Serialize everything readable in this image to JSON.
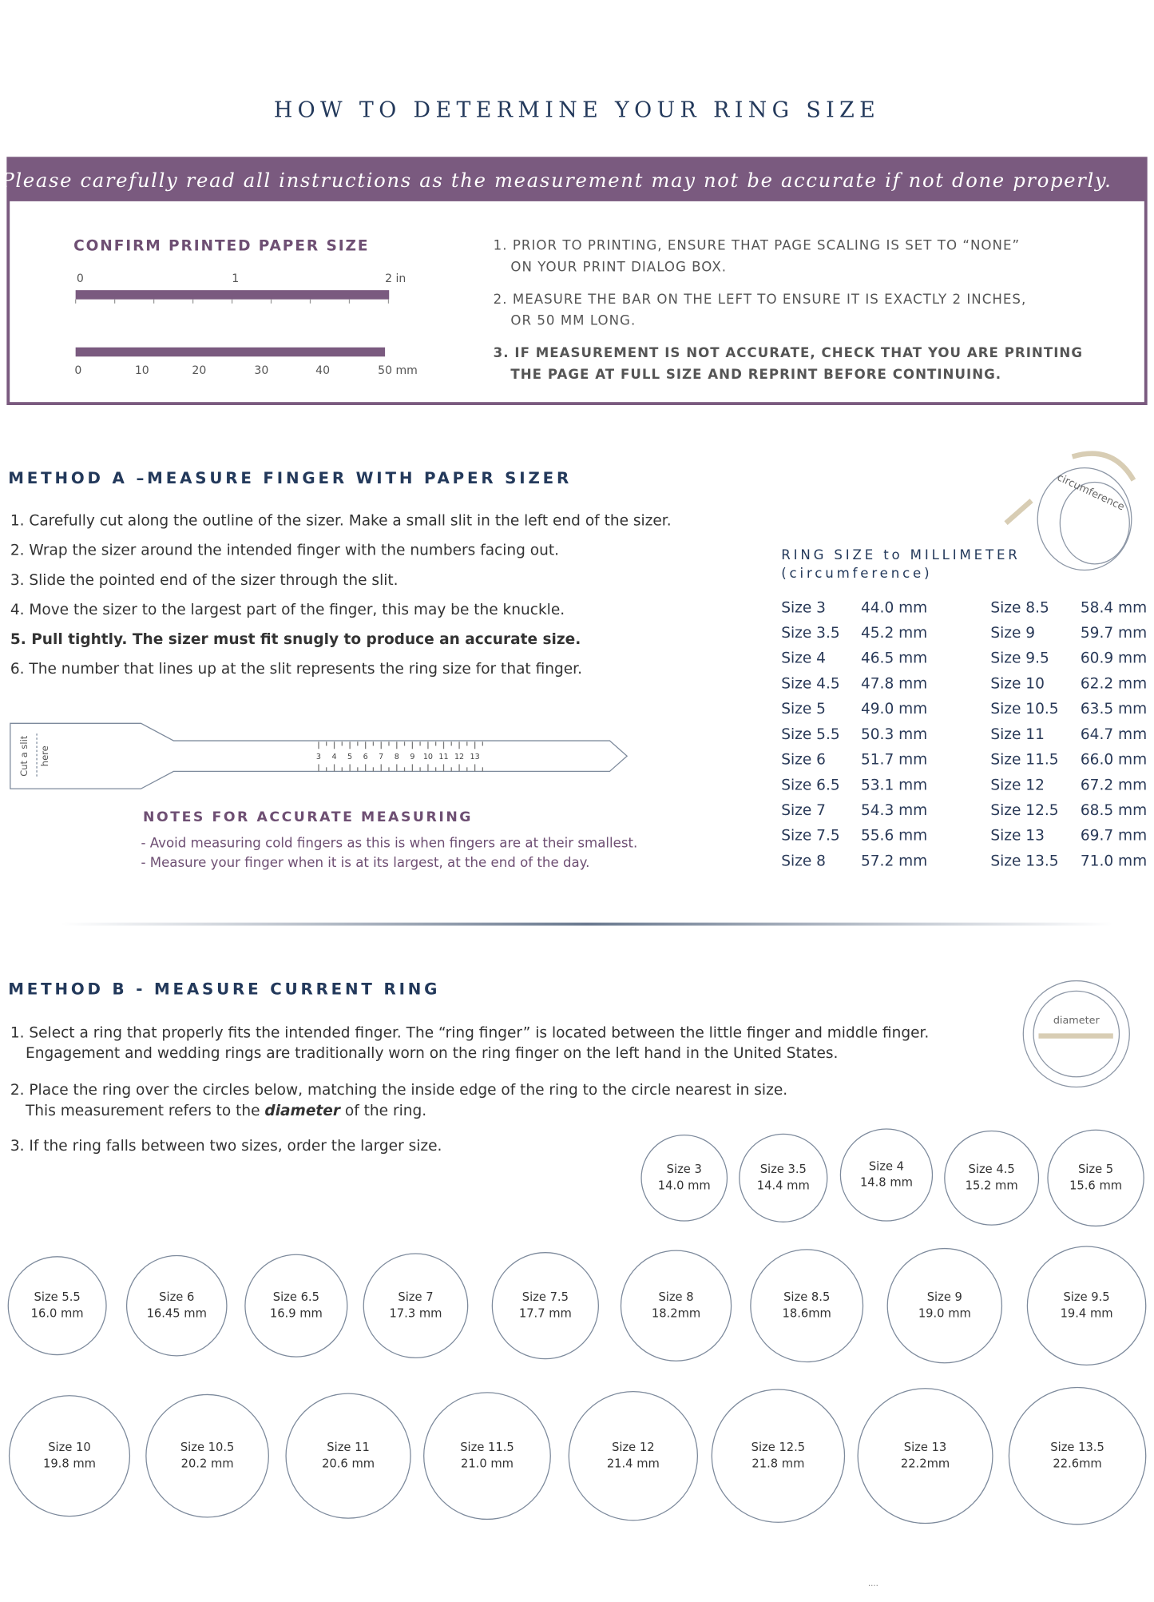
{
  "header": {
    "title": "HOW TO DETERMINE YOUR RING SIZE"
  },
  "banner": "Please carefully read all instructions as the measurement may not be accurate if not done properly.",
  "confirm": {
    "heading": "CONFIRM PRINTED PAPER SIZE",
    "inch_ticks": [
      "0",
      "1",
      "2 in"
    ],
    "mm_ticks": [
      "0",
      "10",
      "20",
      "30",
      "40",
      "50 mm"
    ],
    "steps": [
      [
        "1. PRIOR TO PRINTING, ENSURE THAT PAGE SCALING IS SET TO “NONE”",
        "ON YOUR PRINT DIALOG BOX."
      ],
      [
        "2. MEASURE THE BAR ON THE LEFT TO ENSURE IT IS EXACTLY 2 INCHES,",
        "OR 50 MM LONG."
      ],
      [
        "3. IF MEASUREMENT IS NOT ACCURATE, CHECK THAT YOU ARE PRINTING",
        "THE PAGE AT FULL SIZE AND REPRINT BEFORE CONTINUING."
      ]
    ]
  },
  "method_a": {
    "heading": "METHOD A –MEASURE FINGER WITH PAPER SIZER",
    "steps": [
      "1. Carefully cut  along the outline of the sizer. Make a small slit in the left end of the sizer.",
      "2. Wrap the sizer around the intended finger with the numbers facing out.",
      "3. Slide the pointed end of the sizer through the slit.",
      "4. Move the sizer to the largest part of the finger, this may be the knuckle.",
      "5. Pull tightly. The sizer must fit snugly to produce an accurate size.",
      "6. The number that lines up at the slit represents the ring size for that finger."
    ],
    "sizer": {
      "slit": [
        "Cut a slit",
        "here"
      ],
      "numbers": [
        "3",
        "4",
        "5",
        "6",
        "7",
        "8",
        "9",
        "10",
        "11",
        "12",
        "13"
      ]
    },
    "notes": {
      "heading": "NOTES FOR ACCURATE MEASURING",
      "items": [
        "- Avoid measuring cold fingers as this  is when fingers are at their smallest.",
        "- Measure your finger when it is at its largest, at the end of the day."
      ]
    },
    "table": {
      "title": "RING SIZE to MILLIMETER",
      "subtitle": "(circumference)",
      "icon_label": "circumference",
      "rows": [
        [
          "Size 3",
          "44.0 mm"
        ],
        [
          "Size 3.5",
          "45.2 mm"
        ],
        [
          "Size 4",
          "46.5 mm"
        ],
        [
          "Size 4.5",
          "47.8 mm"
        ],
        [
          "Size 5",
          "49.0 mm"
        ],
        [
          "Size 5.5",
          "50.3 mm"
        ],
        [
          "Size 6",
          "51.7 mm"
        ],
        [
          "Size 6.5",
          "53.1 mm"
        ],
        [
          "Size 7",
          "54.3 mm"
        ],
        [
          "Size 7.5",
          "55.6 mm"
        ],
        [
          "Size 8",
          "57.2 mm"
        ],
        [
          "Size 8.5",
          "58.4 mm"
        ],
        [
          "Size 9",
          "59.7 mm"
        ],
        [
          "Size 9.5",
          "60.9 mm"
        ],
        [
          "Size 10",
          "62.2 mm"
        ],
        [
          "Size 10.5",
          "63.5 mm"
        ],
        [
          "Size 11",
          "64.7 mm"
        ],
        [
          "Size 11.5",
          "66.0 mm"
        ],
        [
          "Size 12",
          "67.2 mm"
        ],
        [
          "Size 12.5",
          "68.5 mm"
        ],
        [
          "Size 13",
          "69.7 mm"
        ],
        [
          "Size 13.5",
          "71.0 mm"
        ]
      ]
    }
  },
  "method_b": {
    "heading": "METHOD B - MEASURE CURRENT RING",
    "steps": [
      [
        "1. Select a ring that properly fits the intended finger. The “ring finger” is located between the little finger and middle finger.",
        "Engagement and wedding rings are traditionally worn on the ring finger on the left hand in the United States."
      ],
      [
        "2. Place the ring over the circles below, matching the inside edge of the ring to the circle nearest in size.",
        [
          "This measurement refers to the ",
          "diameter",
          " of the ring."
        ]
      ],
      [
        "3. If the ring falls between two sizes, order the larger size."
      ]
    ],
    "icon_label": "diameter",
    "circles": [
      [
        "Size 3",
        "14.0 mm"
      ],
      [
        "Size 3.5",
        "14.4 mm"
      ],
      [
        "Size 4",
        "14.8 mm"
      ],
      [
        "Size 4.5",
        "15.2 mm"
      ],
      [
        "Size 5",
        "15.6 mm"
      ],
      [
        "Size 5.5",
        "16.0 mm"
      ],
      [
        "Size 6",
        "16.45 mm"
      ],
      [
        "Size 6.5",
        "16.9 mm"
      ],
      [
        "Size 7",
        "17.3 mm"
      ],
      [
        "Size 7.5",
        "17.7 mm"
      ],
      [
        "Size 8",
        "18.2mm"
      ],
      [
        "Size 8.5",
        "18.6mm"
      ],
      [
        "Size 9",
        "19.0 mm"
      ],
      [
        "Size 9.5",
        "19.4 mm"
      ],
      [
        "Size 10",
        "19.8 mm"
      ],
      [
        "Size 10.5",
        "20.2 mm"
      ],
      [
        "Size 11",
        "20.6 mm"
      ],
      [
        "Size 11.5",
        "21.0 mm"
      ],
      [
        "Size 12",
        "21.4 mm"
      ],
      [
        "Size 12.5",
        "21.8 mm"
      ],
      [
        "Size 13",
        "22.2mm"
      ],
      [
        "Size 13.5",
        "22.6mm"
      ]
    ]
  }
}
